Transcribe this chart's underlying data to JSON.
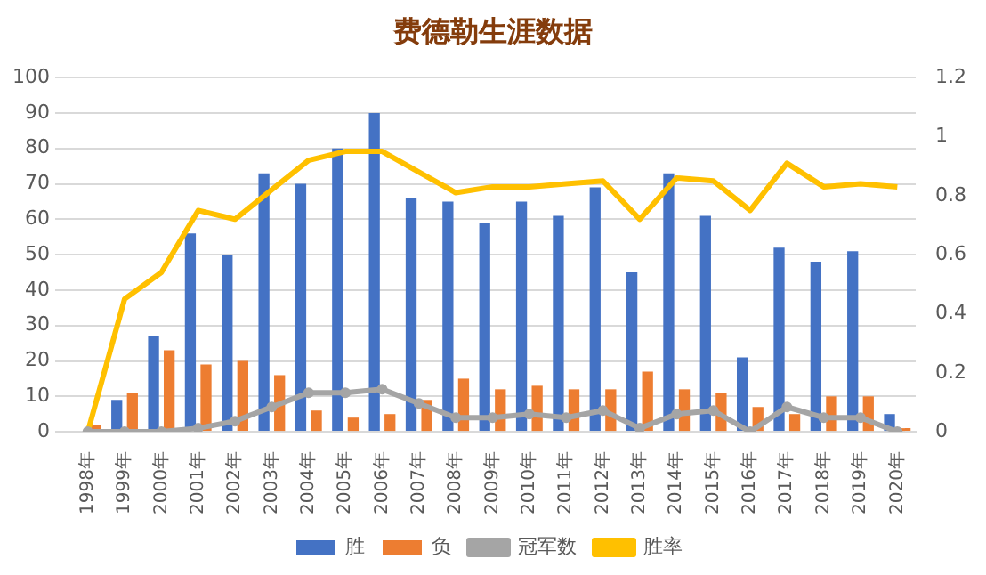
{
  "chart_data": {
    "type": "bar",
    "title": "费德勒生涯数据",
    "categories": [
      "1998年",
      "1999年",
      "2000年",
      "2001年",
      "2002年",
      "2003年",
      "2004年",
      "2005年",
      "2006年",
      "2007年",
      "2008年",
      "2009年",
      "2010年",
      "2011年",
      "2012年",
      "2013年",
      "2014年",
      "2015年",
      "2016年",
      "2017年",
      "2018年",
      "2019年",
      "2020年"
    ],
    "series": [
      {
        "name": "胜",
        "color": "#4472c4",
        "values": [
          0,
          9,
          27,
          56,
          50,
          73,
          70,
          80,
          90,
          66,
          65,
          59,
          65,
          61,
          69,
          45,
          73,
          61,
          21,
          52,
          48,
          51,
          5
        ]
      },
      {
        "name": "负",
        "color": "#ed7d31",
        "values": [
          2,
          11,
          23,
          19,
          20,
          16,
          6,
          4,
          5,
          9,
          15,
          12,
          13,
          12,
          12,
          17,
          12,
          11,
          7,
          5,
          10,
          10,
          1
        ]
      },
      {
        "name": "冠军数",
        "type": "line",
        "color": "#a5a5a5",
        "marker": "circle",
        "values": [
          0,
          0,
          0,
          1,
          3,
          7,
          11,
          11,
          12,
          8,
          4,
          4,
          5,
          4,
          6,
          1,
          5,
          6,
          0,
          7,
          4,
          4,
          0
        ]
      },
      {
        "name": "胜率",
        "type": "line",
        "axis": "y2",
        "color": "#ffc000",
        "marker": "none",
        "values": [
          0,
          0.45,
          0.54,
          0.75,
          0.72,
          0.82,
          0.92,
          0.95,
          0.95,
          0.88,
          0.81,
          0.83,
          0.83,
          0.84,
          0.85,
          0.72,
          0.86,
          0.85,
          0.75,
          0.91,
          0.83,
          0.84,
          0.83
        ]
      }
    ],
    "ylim": [
      0,
      100
    ],
    "yticks": [
      0,
      10,
      20,
      30,
      40,
      50,
      60,
      70,
      80,
      90,
      100
    ],
    "y2lim": [
      0,
      1.2
    ],
    "y2ticks": [
      0,
      0.2,
      0.4,
      0.6,
      0.8,
      1,
      1.2
    ],
    "grid": "y",
    "legend": "bottom"
  }
}
